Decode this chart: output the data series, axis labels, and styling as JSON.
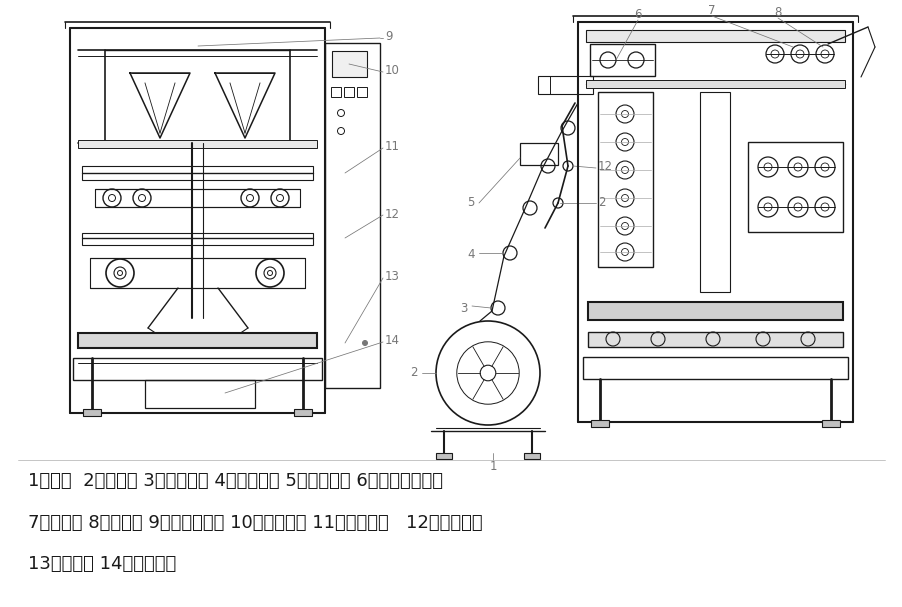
{
  "bg_color": "#ffffff",
  "line_color": "#1a1a1a",
  "label_color": "#777777",
  "text_color": "#1a1a1a",
  "caption_lines": [
    "1、机架  2、包装膜 3、放膜机构 4、走膜系统 5、打印装置 6、打印调节结构",
    "7、编码器 8、成型器 9、成型器支架 10、纵封机构 11、拉膜机构   12、横封机构",
    "13、控制柜 14、落袋溥板"
  ],
  "fig_width": 9.03,
  "fig_height": 6.07,
  "dpi": 100
}
